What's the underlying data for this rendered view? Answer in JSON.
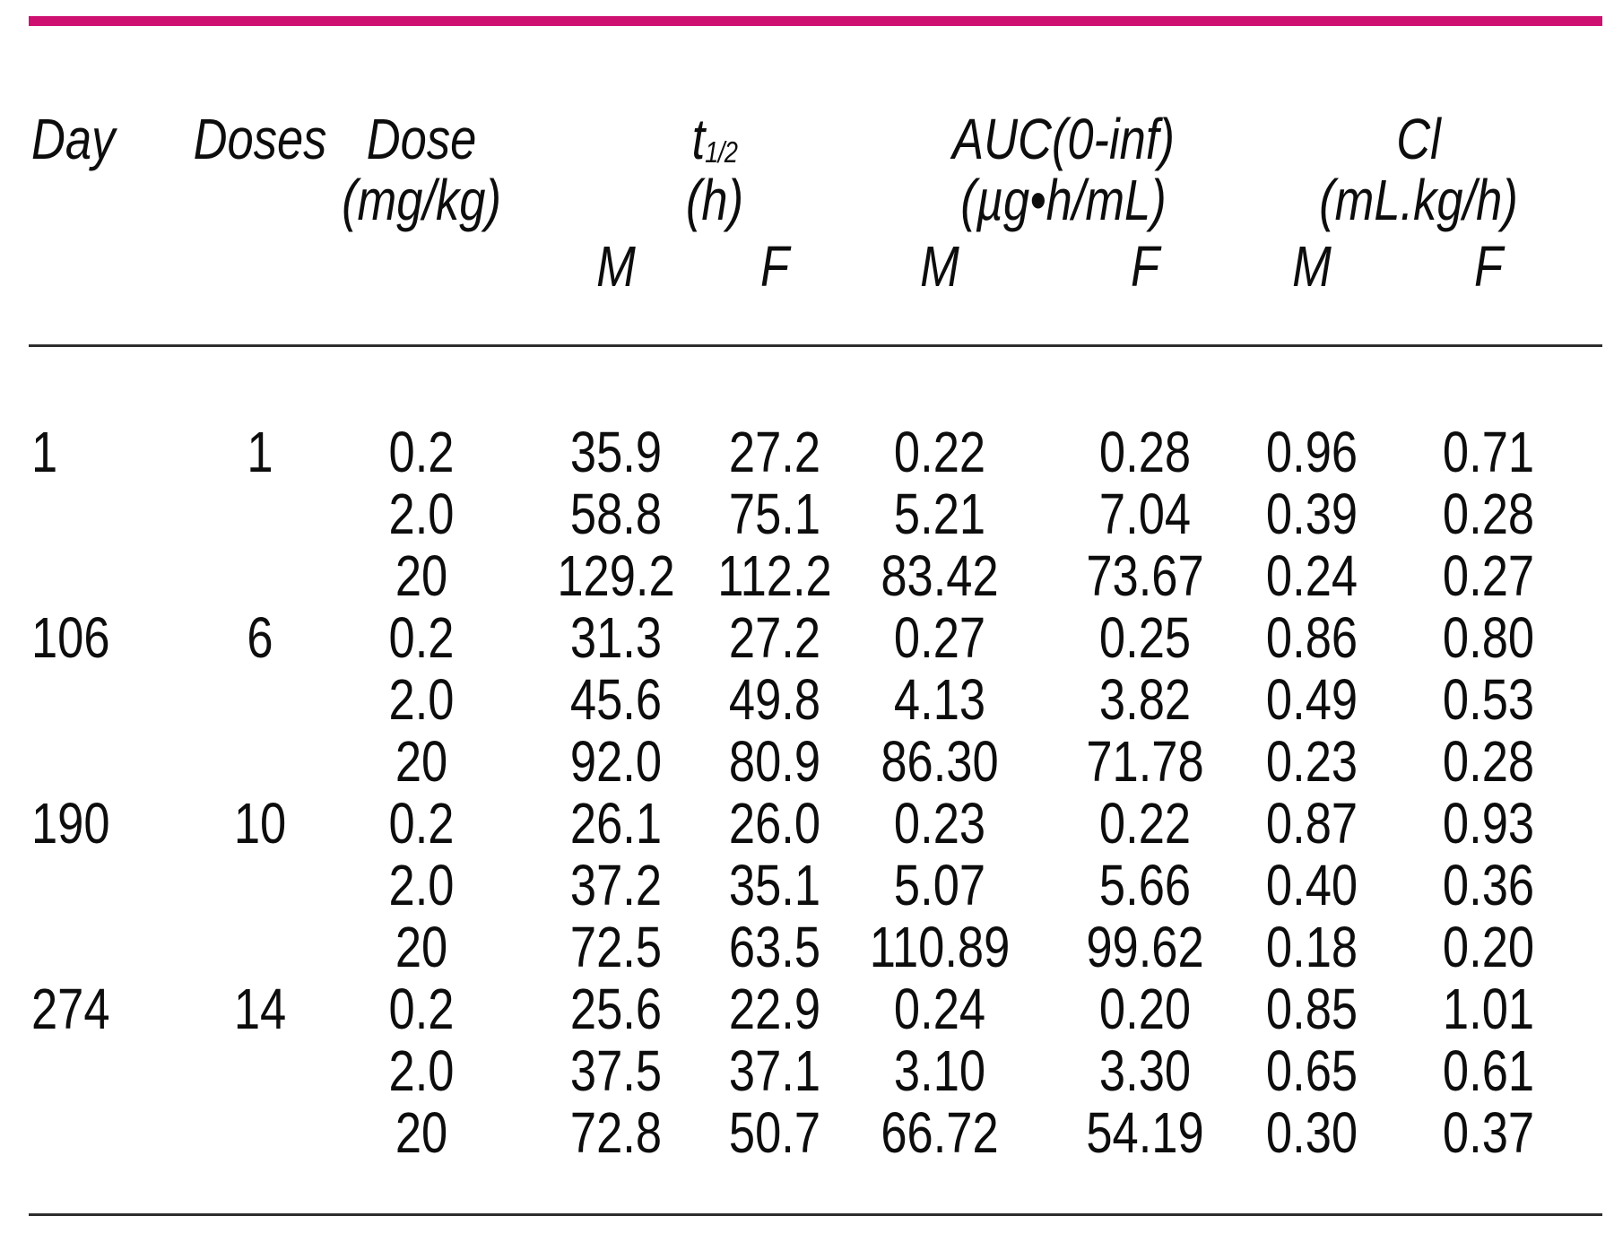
{
  "figure": {
    "background": "#ffffff",
    "accent_rule_color": "#ce1170",
    "thin_rule_color": "#2d2d2d",
    "text_color": "#0d0d0d"
  },
  "table": {
    "header": {
      "day": "Day",
      "doses": "Doses",
      "dose": "Dose",
      "dose_unit": "(mg/kg)",
      "t12_base": "t",
      "t12_sub": "1/2",
      "t12_unit": "(h)",
      "auc": "AUC(0-inf)",
      "auc_unit": "(µg•h/mL)",
      "cl": "Cl",
      "cl_unit": "(mL.kg/h)",
      "male": "M",
      "female": "F"
    },
    "rows": [
      {
        "day": "1",
        "doses": "1",
        "dose": "0.2",
        "t12_m": "35.9",
        "t12_f": "27.2",
        "auc_m": "0.22",
        "auc_f": "0.28",
        "cl_m": "0.96",
        "cl_f": "0.71"
      },
      {
        "day": "",
        "doses": "",
        "dose": "2.0",
        "t12_m": "58.8",
        "t12_f": "75.1",
        "auc_m": "5.21",
        "auc_f": "7.04",
        "cl_m": "0.39",
        "cl_f": "0.28"
      },
      {
        "day": "",
        "doses": "",
        "dose": "20",
        "t12_m": "129.2",
        "t12_f": "112.2",
        "auc_m": "83.42",
        "auc_f": "73.67",
        "cl_m": "0.24",
        "cl_f": "0.27"
      },
      {
        "day": "106",
        "doses": "6",
        "dose": "0.2",
        "t12_m": "31.3",
        "t12_f": "27.2",
        "auc_m": "0.27",
        "auc_f": "0.25",
        "cl_m": "0.86",
        "cl_f": "0.80"
      },
      {
        "day": "",
        "doses": "",
        "dose": "2.0",
        "t12_m": "45.6",
        "t12_f": "49.8",
        "auc_m": "4.13",
        "auc_f": "3.82",
        "cl_m": "0.49",
        "cl_f": "0.53"
      },
      {
        "day": "",
        "doses": "",
        "dose": "20",
        "t12_m": "92.0",
        "t12_f": "80.9",
        "auc_m": "86.30",
        "auc_f": "71.78",
        "cl_m": "0.23",
        "cl_f": "0.28"
      },
      {
        "day": "190",
        "doses": "10",
        "dose": "0.2",
        "t12_m": "26.1",
        "t12_f": "26.0",
        "auc_m": "0.23",
        "auc_f": "0.22",
        "cl_m": "0.87",
        "cl_f": "0.93"
      },
      {
        "day": "",
        "doses": "",
        "dose": "2.0",
        "t12_m": "37.2",
        "t12_f": "35.1",
        "auc_m": "5.07",
        "auc_f": "5.66",
        "cl_m": "0.40",
        "cl_f": "0.36"
      },
      {
        "day": "",
        "doses": "",
        "dose": "20",
        "t12_m": "72.5",
        "t12_f": "63.5",
        "auc_m": "110.89",
        "auc_f": "99.62",
        "cl_m": "0.18",
        "cl_f": "0.20"
      },
      {
        "day": "274",
        "doses": "14",
        "dose": "0.2",
        "t12_m": "25.6",
        "t12_f": "22.9",
        "auc_m": "0.24",
        "auc_f": "0.20",
        "cl_m": "0.85",
        "cl_f": "1.01"
      },
      {
        "day": "",
        "doses": "",
        "dose": "2.0",
        "t12_m": "37.5",
        "t12_f": "37.1",
        "auc_m": "3.10",
        "auc_f": "3.30",
        "cl_m": "0.65",
        "cl_f": "0.61"
      },
      {
        "day": "",
        "doses": "",
        "dose": "20",
        "t12_m": "72.8",
        "t12_f": "50.7",
        "auc_m": "66.72",
        "auc_f": "54.19",
        "cl_m": "0.30",
        "cl_f": "0.37"
      }
    ]
  }
}
